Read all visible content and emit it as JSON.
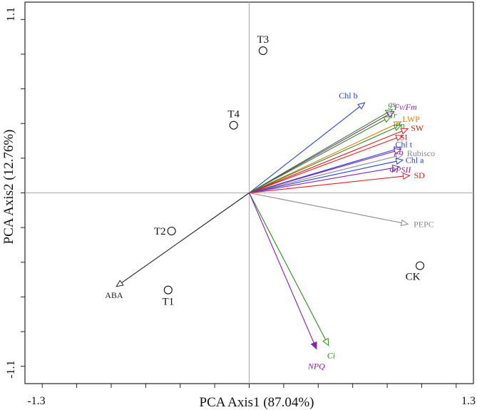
{
  "chart_data": {
    "type": "scatter",
    "subtype": "pca-biplot",
    "xlabel": "PCA  Axis1  (87.04%)",
    "ylabel": "PCA  Axis2  (12.76%)",
    "xlim": [
      -1.3,
      1.3
    ],
    "ylim": [
      -1.1,
      1.1
    ],
    "x_tick_labels": [
      {
        "value": -1.3,
        "label": "-1.3"
      },
      {
        "value": 1.3,
        "label": "1.3"
      }
    ],
    "y_tick_labels": [
      {
        "value": 1.1,
        "label": "1.1"
      },
      {
        "value": -1.1,
        "label": "-1.1"
      }
    ],
    "sites": [
      {
        "name": "T3",
        "x": 0.08,
        "y": 0.82
      },
      {
        "name": "T4",
        "x": -0.09,
        "y": 0.39
      },
      {
        "name": "T2",
        "x": -0.45,
        "y": -0.22
      },
      {
        "name": "T1",
        "x": -0.47,
        "y": -0.56
      },
      {
        "name": "CK",
        "x": 0.99,
        "y": -0.42
      }
    ],
    "vectors": [
      {
        "name": "Chl b",
        "x": 0.67,
        "y": 0.52,
        "color": "#1f3fe0",
        "italic": false
      },
      {
        "name": "gs",
        "x": 0.83,
        "y": 0.48,
        "color": "#2e8b1e",
        "italic": true
      },
      {
        "name": "Fv/Fm",
        "x": 0.84,
        "y": 0.47,
        "color": "#8b1fa8",
        "italic": true
      },
      {
        "name": "Tr",
        "x": 0.82,
        "y": 0.44,
        "color": "#2e8b1e",
        "italic": true
      },
      {
        "name": "LWP",
        "x": 0.88,
        "y": 0.41,
        "color": "#e07a10",
        "italic": false
      },
      {
        "name": "Pn",
        "x": 0.88,
        "y": 0.39,
        "color": "#2e8b1e",
        "italic": true
      },
      {
        "name": "SW",
        "x": 0.92,
        "y": 0.37,
        "color": "#e01818",
        "italic": false
      },
      {
        "name": "SI",
        "x": 0.89,
        "y": 0.33,
        "color": "#e01818",
        "italic": false
      },
      {
        "name": "Chl t",
        "x": 0.88,
        "y": 0.26,
        "color": "#1f3fe0",
        "italic": false
      },
      {
        "name": "qP",
        "x": 0.88,
        "y": 0.25,
        "color": "#8b1fa8",
        "italic": true
      },
      {
        "name": "Rubisco",
        "x": 0.89,
        "y": 0.22,
        "color": "#888888",
        "italic": false
      },
      {
        "name": "Chl a",
        "x": 0.89,
        "y": 0.19,
        "color": "#1f3fe0",
        "italic": false
      },
      {
        "name": "ΦPSII",
        "x": 0.87,
        "y": 0.15,
        "color": "#8b1fa8",
        "italic": true
      },
      {
        "name": "SD",
        "x": 0.93,
        "y": 0.1,
        "color": "#e01818",
        "italic": false
      },
      {
        "name": "PEPC",
        "x": 0.92,
        "y": -0.18,
        "color": "#888888",
        "italic": false
      },
      {
        "name": "ABA",
        "x": -0.77,
        "y": -0.54,
        "color": "#222222",
        "italic": false
      },
      {
        "name": "Ci",
        "x": 0.46,
        "y": -0.88,
        "color": "#2e8b1e",
        "italic": true
      },
      {
        "name": "NPQ",
        "x": 0.39,
        "y": -0.9,
        "color": "#8b1fa8",
        "italic": true
      }
    ]
  }
}
